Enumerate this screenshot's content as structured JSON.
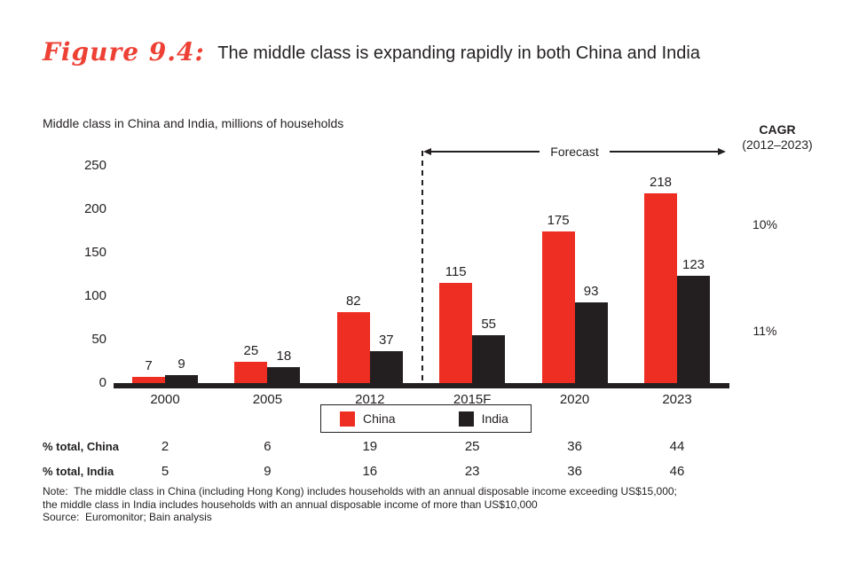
{
  "figure": {
    "label": "Figure 9.4:",
    "label_color": "#ee4135",
    "title": "The middle class is expanding rapidly in both China and India"
  },
  "chart_data": {
    "type": "bar",
    "title": "Middle class in China and India, millions of households",
    "categories": [
      "2000",
      "2005",
      "2012",
      "2015F",
      "2020",
      "2023"
    ],
    "series": [
      {
        "name": "China",
        "color": "#ee2d23",
        "values": [
          7,
          25,
          82,
          115,
          175,
          218
        ],
        "cagr": "10%"
      },
      {
        "name": "India",
        "color": "#231f20",
        "values": [
          9,
          18,
          37,
          55,
          93,
          123
        ],
        "cagr": "11%"
      }
    ],
    "ylim": [
      0,
      250
    ],
    "yticks": [
      0,
      50,
      100,
      150,
      200,
      250
    ],
    "grid": false,
    "legend_position": "bottom",
    "forecast_label": "Forecast",
    "forecast_start_category": "2015F",
    "cagr_header": "CAGR",
    "cagr_period": "(2012–2023)"
  },
  "table": {
    "rows": [
      {
        "label": "% total, China",
        "values": [
          "2",
          "6",
          "19",
          "25",
          "36",
          "44"
        ]
      },
      {
        "label": "% total, India",
        "values": [
          "5",
          "9",
          "16",
          "23",
          "36",
          "46"
        ]
      }
    ]
  },
  "footnotes": {
    "note_line1": "Note:  The middle class in China (including Hong Kong) includes households with an annual disposable income exceeding US$15,000;",
    "note_line2": "the middle class in India includes households with an annual disposable income of more than US$10,000",
    "source": "Source:  Euromonitor; Bain analysis"
  }
}
